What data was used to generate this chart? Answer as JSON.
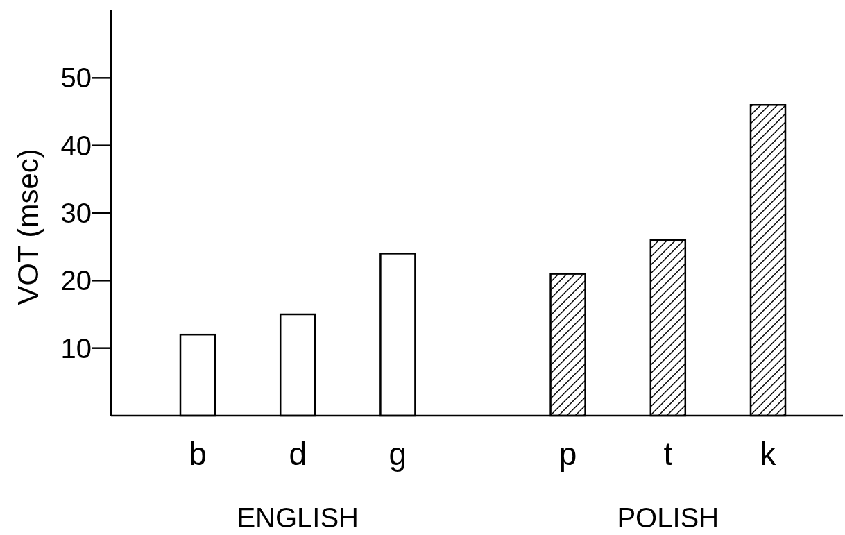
{
  "chart_data": {
    "type": "bar",
    "ylabel": "VOT (msec)",
    "categories": [
      "b",
      "d",
      "g",
      "p",
      "t",
      "k"
    ],
    "series": [
      {
        "color": "#ffffff",
        "values": [
          12,
          15,
          24,
          null,
          null,
          null
        ]
      },
      {
        "color": "#000000",
        "values": [
          null,
          null,
          null,
          21,
          26,
          46
        ]
      }
    ],
    "annotations": [
      "ENGLISH",
      "POLISH"
    ],
    "ylim": [
      0,
      60
    ],
    "yticks": [
      10,
      20,
      30,
      40,
      50
    ],
    "grid": false
  }
}
